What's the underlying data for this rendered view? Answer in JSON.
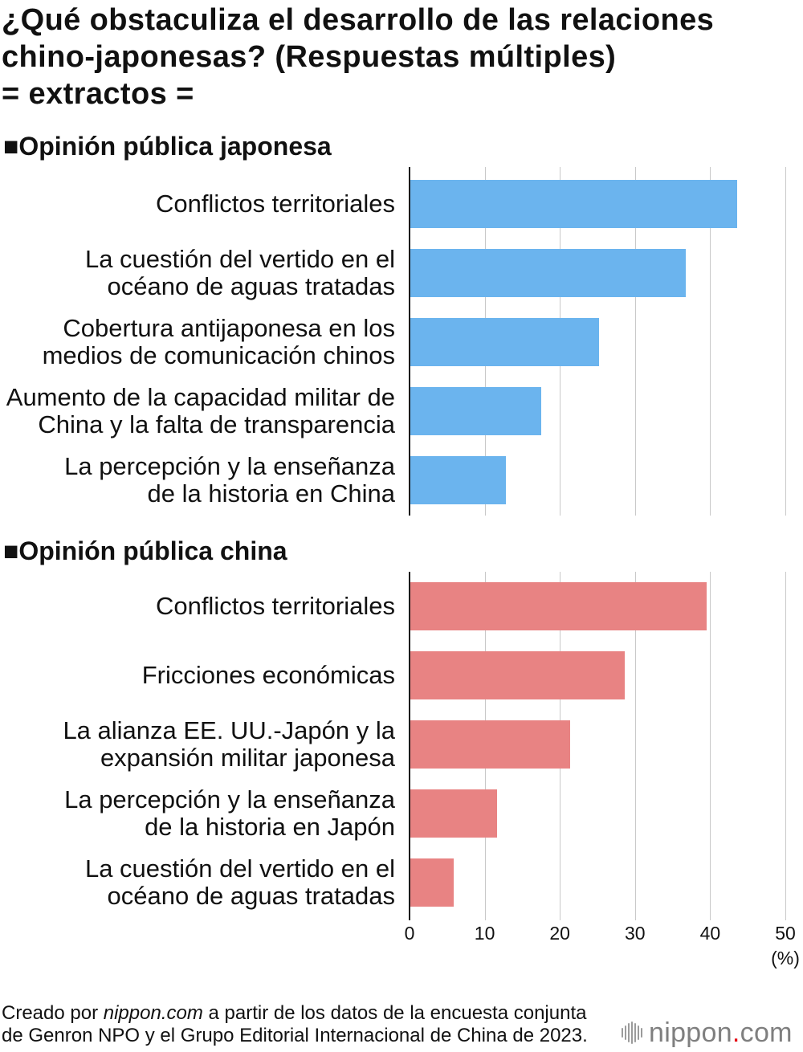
{
  "title": "¿Qué obstaculiza el desarrollo de las relaciones\nchino-japonesas? (Respuestas múltiples)\n= extractos =",
  "chart_data": [
    {
      "type": "bar",
      "orientation": "horizontal",
      "title": "■Opinión pública japonesa",
      "categories": [
        "Conflictos territoriales",
        "La cuestión del vertido en el\nocéano de aguas tratadas",
        "Cobertura antijaponesa en los\nmedios de comunicación chinos",
        "Aumento de la capacidad militar de\nChina y la falta de transparencia",
        "La percepción y la enseñanza\nde la historia en China"
      ],
      "values": [
        43.6,
        36.8,
        25.2,
        17.5,
        12.8
      ],
      "xlim": [
        0,
        50
      ],
      "x_grid": [
        10,
        20,
        30,
        40,
        50
      ],
      "color": "#6BB4EE"
    },
    {
      "type": "bar",
      "orientation": "horizontal",
      "title": "■Opinión pública china",
      "categories": [
        "Conflictos territoriales",
        "Fricciones económicas",
        "La alianza EE. UU.-Japón y la\nexpansión militar japonesa",
        "La percepción y la enseñanza\nde la historia en Japón",
        "La cuestión del vertido en el\nocéano de aguas tratadas"
      ],
      "values": [
        39.5,
        28.6,
        21.4,
        11.6,
        5.9
      ],
      "xlim": [
        0,
        50
      ],
      "x_grid": [
        10,
        20,
        30,
        40,
        50
      ],
      "x_ticks": [
        0,
        10,
        20,
        30,
        40,
        50
      ],
      "x_unit": "(%)",
      "color": "#E88383"
    }
  ],
  "footer": {
    "credit_prefix": "Creado por ",
    "credit_source": "nippon.com",
    "credit_suffix": " a partir de los datos de la encuesta conjunta\nde Genron NPO y el Grupo Editorial Internacional de China de 2023."
  },
  "logo": {
    "name": "nippon",
    "dot": ".",
    "tld": "com",
    "dot_color": "#E60012"
  }
}
